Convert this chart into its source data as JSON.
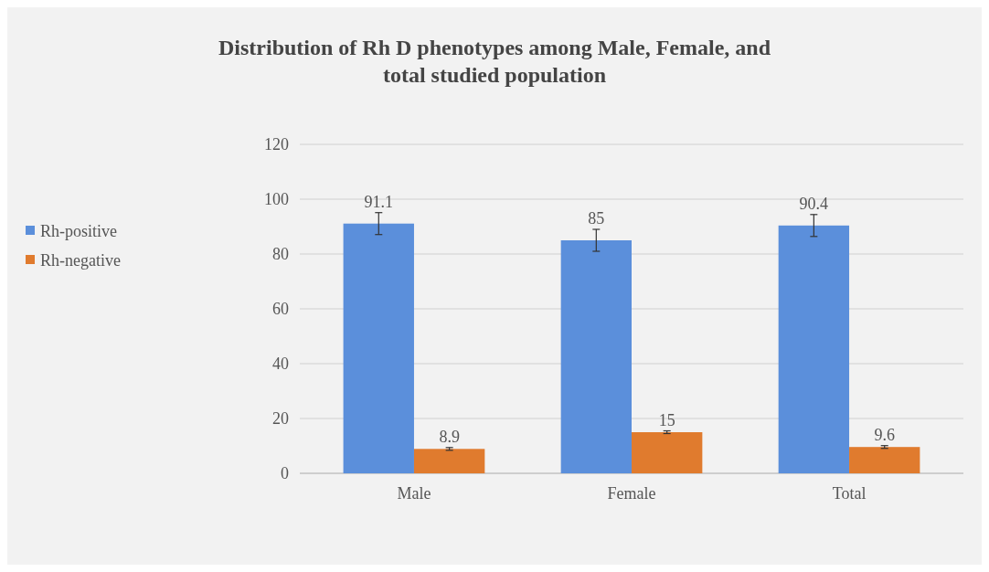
{
  "chart_data": {
    "type": "bar",
    "title": "Distribution of Rh D phenotypes among Male, Female, and total studied population",
    "categories": [
      "Male",
      "Female",
      "Total"
    ],
    "series": [
      {
        "name": "Rh-positive",
        "color": "#5b8fdb",
        "values": [
          91.1,
          85,
          90.4
        ],
        "errors": [
          4,
          4,
          4
        ]
      },
      {
        "name": "Rh-negative",
        "color": "#e07b2e",
        "values": [
          8.9,
          15,
          9.6
        ],
        "errors": [
          0.5,
          0.5,
          0.5
        ]
      }
    ],
    "ylim": [
      0,
      120
    ],
    "yticks": [
      0,
      20,
      40,
      60,
      80,
      100,
      120
    ],
    "grid": "y",
    "legend": "left",
    "data_labels": true
  }
}
